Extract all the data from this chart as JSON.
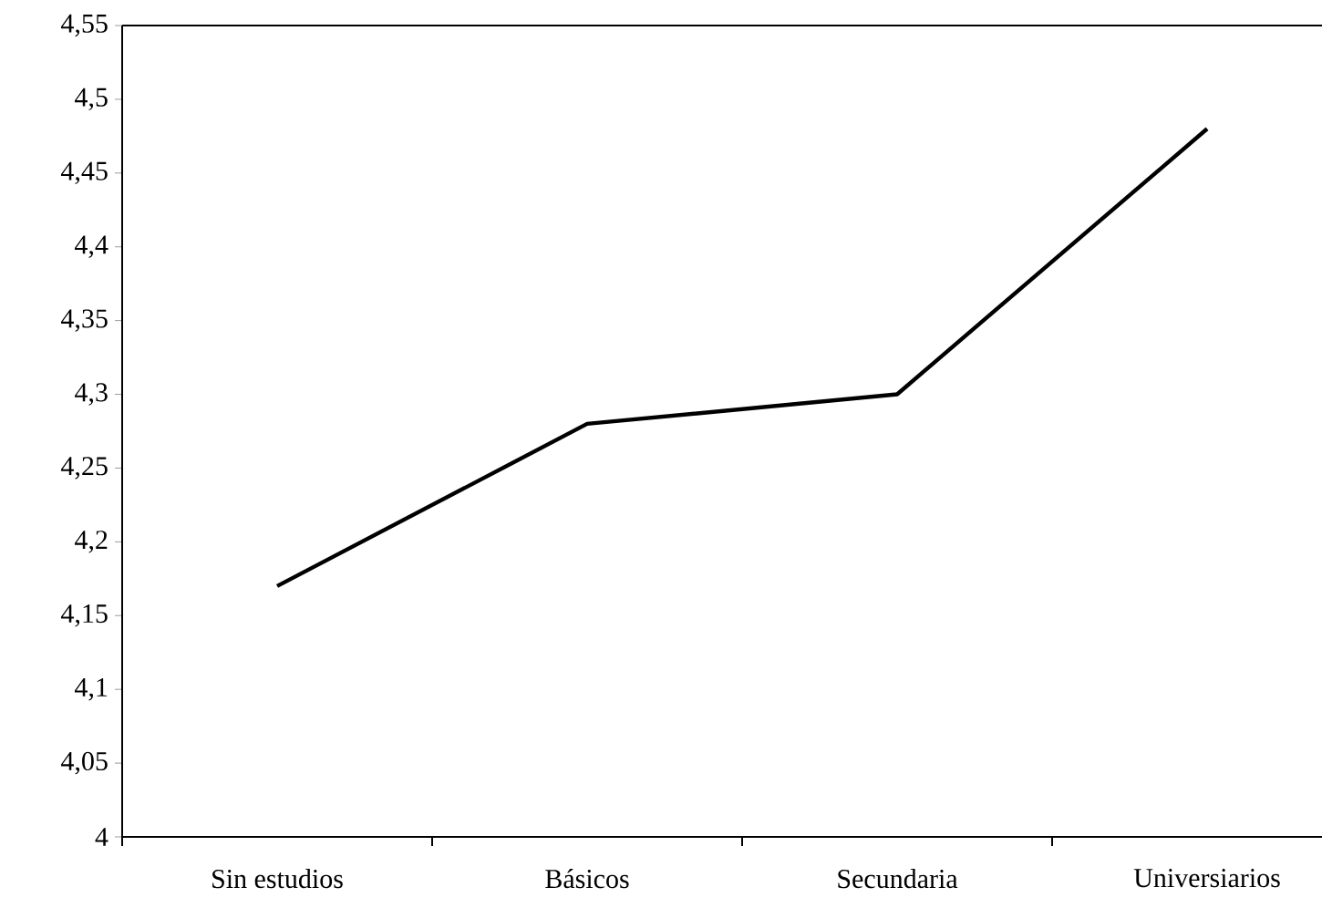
{
  "chart_data": {
    "type": "line",
    "categories": [
      "Sin estudios",
      "Básicos",
      "Secundaria",
      "Universiarios"
    ],
    "series": [
      {
        "color": "#000000",
        "values": [
          4.17,
          4.28,
          4.3,
          4.48
        ]
      }
    ],
    "ylim": [
      4,
      4.55
    ],
    "yticks": [
      4,
      {
        "value": 4.05,
        "label": "4,05"
      },
      {
        "value": 4.1,
        "label": "4,1"
      },
      {
        "value": 4.15,
        "label": "4,15"
      },
      {
        "value": 4.2,
        "label": "4,2"
      },
      {
        "value": 4.25,
        "label": "4,25"
      },
      {
        "value": 4.3,
        "label": "4,3"
      },
      {
        "value": 4.35,
        "label": "4,35"
      },
      {
        "value": 4.4,
        "label": "4,4"
      },
      {
        "value": 4.45,
        "label": "4,45"
      },
      {
        "value": 4.5,
        "label": "4,5"
      },
      {
        "value": 4.55,
        "label": "4,55"
      }
    ],
    "grid": false,
    "marker": "none",
    "line_style": "solid"
  }
}
